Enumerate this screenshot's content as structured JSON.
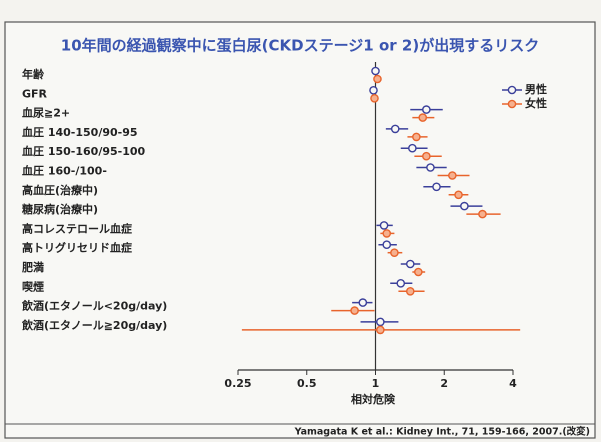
{
  "chart_data": {
    "type": "forest",
    "title": "10年間の経過観察中に蛋白尿(CKDステージ1 or 2)が出現するリスク",
    "xlabel": "相対危険",
    "source": "Yamagata K et al.: Kidney Int., 71, 159-166, 2007.(改変)",
    "categories": [
      "年齢",
      "GFR",
      "血尿≧2+",
      "血圧 140-150/90-95",
      "血圧 150-160/95-100",
      "血圧 160-/100-",
      "高血圧(治療中)",
      "糖尿病(治療中)",
      "高コレステロール血症",
      "高トリグリセリド血症",
      "肥満",
      "喫煙",
      "飲酒(エタノール<20g/day)",
      "飲酒(エタノール≧20g/day)"
    ],
    "series": [
      {
        "name": "男性",
        "color": "#3a3f9a",
        "values": [
          1.0,
          0.98,
          1.67,
          1.22,
          1.45,
          1.74,
          1.85,
          2.45,
          1.09,
          1.12,
          1.42,
          1.29,
          0.88,
          1.05
        ],
        "lower": [
          0.99,
          0.97,
          1.42,
          1.11,
          1.29,
          1.51,
          1.62,
          2.13,
          1.01,
          1.03,
          1.29,
          1.16,
          0.79,
          0.86
        ],
        "upper": [
          1.01,
          0.99,
          1.97,
          1.39,
          1.69,
          2.05,
          2.13,
          2.94,
          1.19,
          1.24,
          1.57,
          1.45,
          0.97,
          1.26
        ]
      },
      {
        "name": "女性",
        "color": "#e8642c",
        "values": [
          1.02,
          0.99,
          1.61,
          1.51,
          1.67,
          2.17,
          2.31,
          2.94,
          1.12,
          1.21,
          1.54,
          1.42,
          0.81,
          1.05
        ],
        "lower": [
          1.01,
          0.98,
          1.45,
          1.38,
          1.48,
          1.87,
          2.09,
          2.5,
          1.05,
          1.13,
          1.45,
          1.26,
          0.64,
          0.26
        ],
        "upper": [
          1.03,
          1.0,
          1.81,
          1.69,
          1.95,
          2.58,
          2.55,
          3.53,
          1.21,
          1.31,
          1.65,
          1.64,
          0.99,
          4.3
        ]
      }
    ],
    "xscale": "log",
    "xlim": [
      0.25,
      4
    ],
    "xticks": [
      0.25,
      0.5,
      1,
      2,
      4
    ],
    "legend": "upper right"
  }
}
